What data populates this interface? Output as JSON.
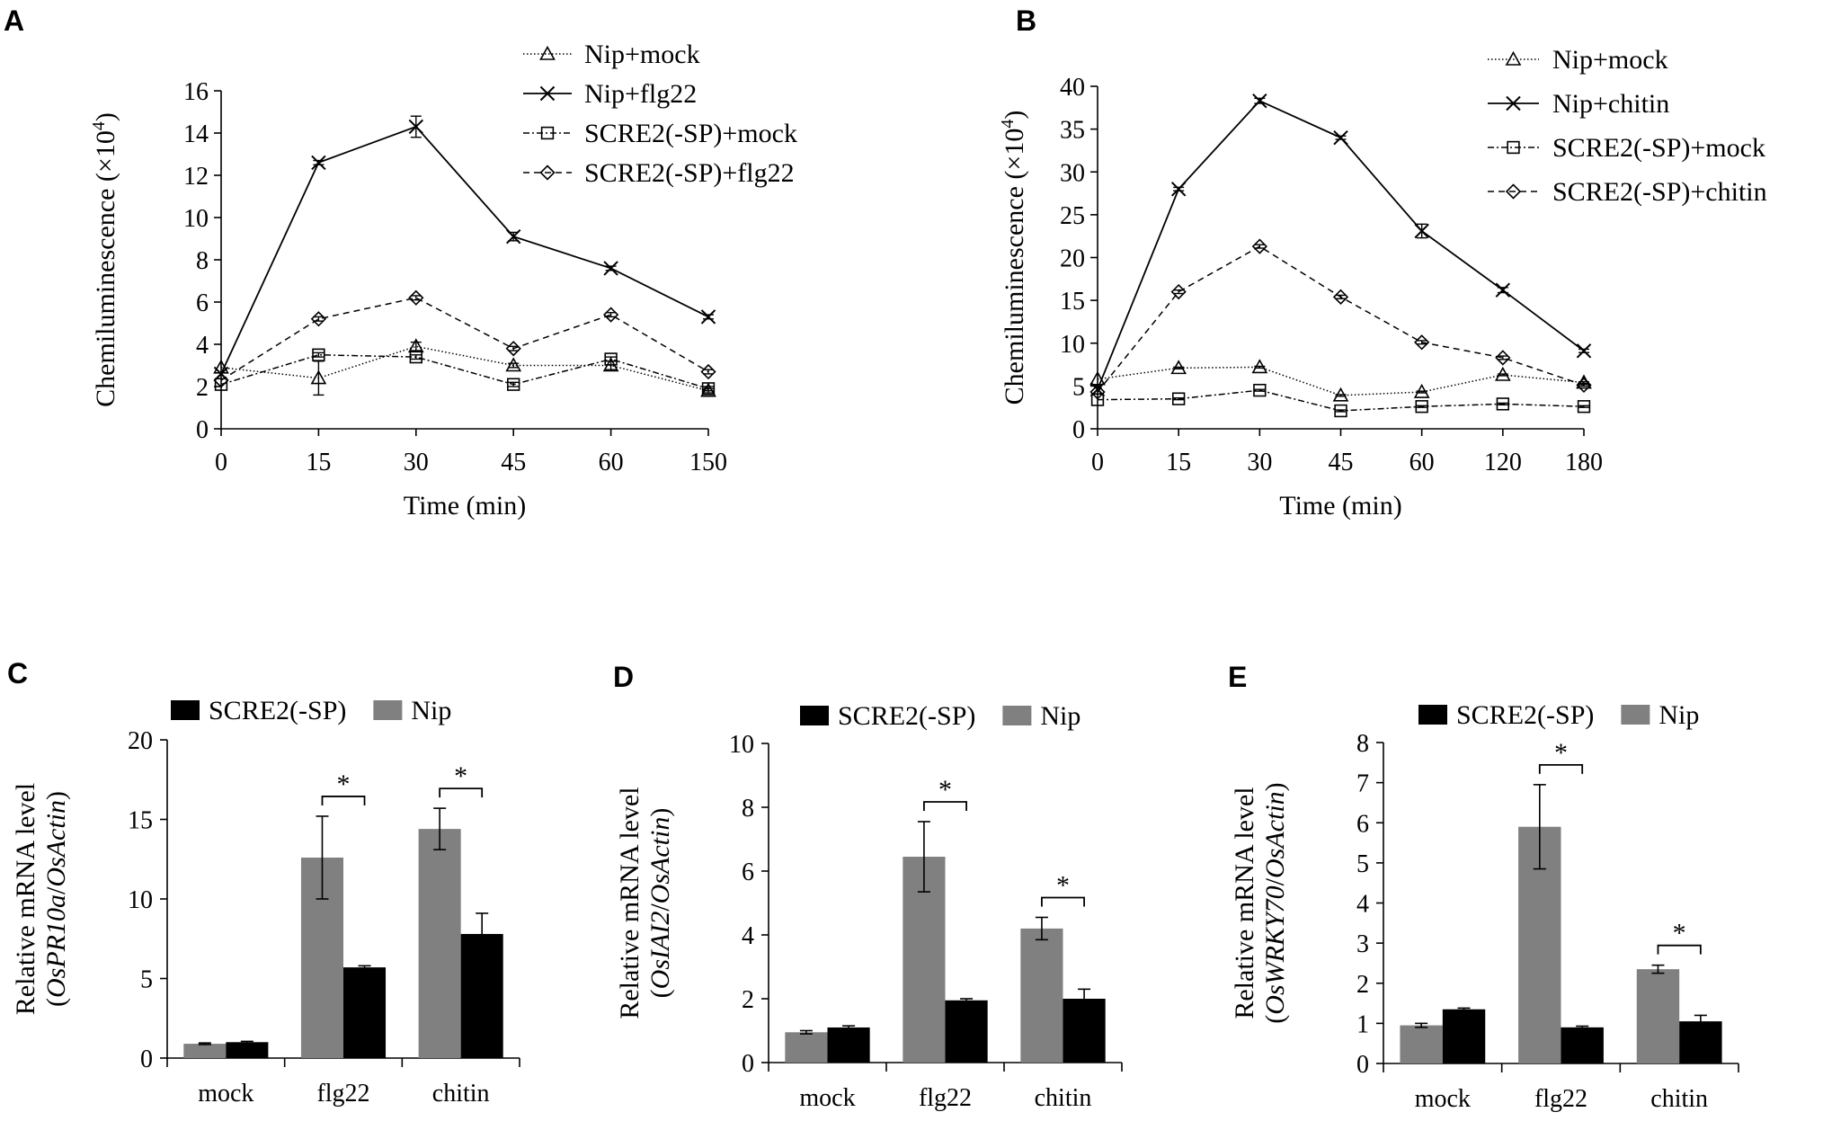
{
  "panels": {
    "a": "A",
    "b": "B",
    "c": "C",
    "d": "D",
    "e": "E"
  },
  "chart_data": [
    {
      "id": "A",
      "type": "line",
      "xlabel": "Time (min)",
      "ylabel": "Chemiluminescence (×10⁴)",
      "ylabel_main": "Chemiluminescence (",
      "ylabel_factor": "×10",
      "ylabel_exp": "4",
      "ylabel_close": ")",
      "categories": [
        "0",
        "15",
        "30",
        "45",
        "60",
        "150"
      ],
      "ylim": [
        0,
        16
      ],
      "yticks": [
        "0",
        "2",
        "4",
        "6",
        "8",
        "10",
        "12",
        "14",
        "16"
      ],
      "series": [
        {
          "name": "Nip+mock",
          "marker": "triangle",
          "dash": "1.5,2.5",
          "values": [
            2.9,
            2.4,
            3.9,
            3.0,
            3.0,
            1.8
          ],
          "errors": [
            0,
            0.8,
            0.2,
            0.1,
            0.2,
            0.1
          ]
        },
        {
          "name": "Nip+flg22",
          "marker": "x",
          "dash": "",
          "values": [
            2.6,
            12.6,
            14.3,
            9.1,
            7.6,
            5.3
          ],
          "errors": [
            0,
            0.1,
            0.5,
            0.2,
            0.1,
            0.1
          ]
        },
        {
          "name": "SCRE2(-SP)+mock",
          "marker": "square",
          "dash": "7,3,2,3",
          "values": [
            2.1,
            3.5,
            3.4,
            2.1,
            3.3,
            1.9
          ],
          "errors": [
            0,
            0.1,
            0.1,
            0.1,
            0.1,
            0.1
          ]
        },
        {
          "name": "SCRE2(-SP)+flg22",
          "marker": "diamond",
          "dash": "7,5",
          "values": [
            2.3,
            5.2,
            6.2,
            3.8,
            5.4,
            2.7
          ],
          "errors": [
            0,
            0.1,
            0.1,
            0.1,
            0.1,
            0.1
          ]
        }
      ]
    },
    {
      "id": "B",
      "type": "line",
      "xlabel": "Time (min)",
      "ylabel": "Chemiluminescence (×10⁴)",
      "ylabel_main": "Chemiluminescence (",
      "ylabel_factor": "×10",
      "ylabel_exp": "4",
      "ylabel_close": ")",
      "categories": [
        "0",
        "15",
        "30",
        "45",
        "60",
        "120",
        "180"
      ],
      "ylim": [
        0,
        40
      ],
      "yticks": [
        "0",
        "5",
        "10",
        "15",
        "20",
        "25",
        "30",
        "35",
        "40"
      ],
      "series": [
        {
          "name": "Nip+mock",
          "marker": "triangle",
          "dash": "1.5,2.5",
          "values": [
            5.8,
            7.1,
            7.2,
            3.9,
            4.3,
            6.3,
            5.4
          ],
          "errors": [
            0,
            0.1,
            0.1,
            0.1,
            0.1,
            0.1,
            0.1
          ]
        },
        {
          "name": "Nip+chitin",
          "marker": "x",
          "dash": "",
          "values": [
            4.6,
            28.0,
            38.3,
            34.0,
            23.1,
            16.2,
            9.1
          ],
          "errors": [
            0,
            0.2,
            0.3,
            0.2,
            0.8,
            0.3,
            0.2
          ]
        },
        {
          "name": "SCRE2(-SP)+mock",
          "marker": "square",
          "dash": "7,3,2,3",
          "values": [
            3.4,
            3.5,
            4.5,
            2.1,
            2.6,
            2.9,
            2.6
          ],
          "errors": [
            0,
            0.1,
            0.1,
            0.1,
            0.1,
            0.1,
            0.1
          ]
        },
        {
          "name": "SCRE2(-SP)+chitin",
          "marker": "diamond",
          "dash": "7,5",
          "values": [
            4.3,
            16.0,
            21.3,
            15.4,
            10.1,
            8.3,
            5.1
          ],
          "errors": [
            0,
            0.2,
            0.2,
            0.2,
            0.2,
            0.2,
            0.1
          ]
        }
      ]
    },
    {
      "id": "C",
      "type": "bar",
      "ylabel_line1": "Relative mRNA level",
      "ylabel_gene": "OsPR10a",
      "ylabel_ref": "OsActin",
      "categories": [
        "mock",
        "flg22",
        "chitin"
      ],
      "ylim": [
        0,
        20
      ],
      "yticks": [
        "0",
        "5",
        "10",
        "15",
        "20"
      ],
      "legend_order": [
        "SCRE2(-SP)",
        "Nip"
      ],
      "series": [
        {
          "name": "Nip",
          "color": "#808080",
          "values": [
            0.9,
            12.6,
            14.4
          ],
          "errors": [
            0.05,
            2.6,
            1.3
          ]
        },
        {
          "name": "SCRE2(-SP)",
          "color": "#000000",
          "values": [
            1.0,
            5.7,
            7.8
          ],
          "errors": [
            0.05,
            0.1,
            1.3
          ]
        }
      ],
      "significance": [
        {
          "category": "flg22",
          "label": "*"
        },
        {
          "category": "chitin",
          "label": "*"
        }
      ]
    },
    {
      "id": "D",
      "type": "bar",
      "ylabel_line1": "Relative mRNA level",
      "ylabel_gene": "OsIAI2",
      "ylabel_ref": "OsActin",
      "categories": [
        "mock",
        "flg22",
        "chitin"
      ],
      "ylim": [
        0,
        10
      ],
      "yticks": [
        "0",
        "2",
        "4",
        "6",
        "8",
        "10"
      ],
      "legend_order": [
        "SCRE2(-SP)",
        "Nip"
      ],
      "series": [
        {
          "name": "Nip",
          "color": "#808080",
          "values": [
            0.95,
            6.45,
            4.2
          ],
          "errors": [
            0.05,
            1.1,
            0.35
          ]
        },
        {
          "name": "SCRE2(-SP)",
          "color": "#000000",
          "values": [
            1.1,
            1.95,
            2.0
          ],
          "errors": [
            0.05,
            0.05,
            0.3
          ]
        }
      ],
      "significance": [
        {
          "category": "flg22",
          "label": "*"
        },
        {
          "category": "chitin",
          "label": "*"
        }
      ]
    },
    {
      "id": "E",
      "type": "bar",
      "ylabel_line1": "Relative mRNA level",
      "ylabel_gene": "OsWRKY70",
      "ylabel_ref": "OsActin",
      "categories": [
        "mock",
        "flg22",
        "chitin"
      ],
      "ylim": [
        0,
        8
      ],
      "yticks": [
        "0",
        "1",
        "2",
        "3",
        "4",
        "5",
        "6",
        "7",
        "8"
      ],
      "legend_order": [
        "SCRE2(-SP)",
        "Nip"
      ],
      "series": [
        {
          "name": "Nip",
          "color": "#808080",
          "values": [
            0.95,
            5.9,
            2.35
          ],
          "errors": [
            0.05,
            1.05,
            0.1
          ]
        },
        {
          "name": "SCRE2(-SP)",
          "color": "#000000",
          "values": [
            1.35,
            0.9,
            1.05
          ],
          "errors": [
            0.03,
            0.03,
            0.15
          ]
        }
      ],
      "significance": [
        {
          "category": "flg22",
          "label": "*"
        },
        {
          "category": "chitin",
          "label": "*"
        }
      ]
    }
  ]
}
